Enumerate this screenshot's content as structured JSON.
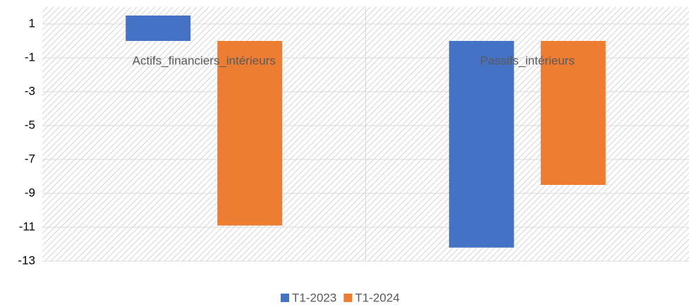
{
  "chart_data": {
    "type": "bar",
    "categories": [
      "Actifs_financiers_intérieurs",
      "Passifs_intérieurs"
    ],
    "series": [
      {
        "name": "T1-2023",
        "color": "#4472c4",
        "values": [
          1.5,
          -12.2
        ]
      },
      {
        "name": "T1-2024",
        "color": "#ed7d31",
        "values": [
          -10.9,
          -8.5
        ]
      }
    ],
    "ylim": [
      -13,
      2
    ],
    "yticks": [
      1,
      -1,
      -3,
      -5,
      -7,
      -9,
      -11,
      -13
    ],
    "grid": true,
    "legend": "bottom"
  }
}
